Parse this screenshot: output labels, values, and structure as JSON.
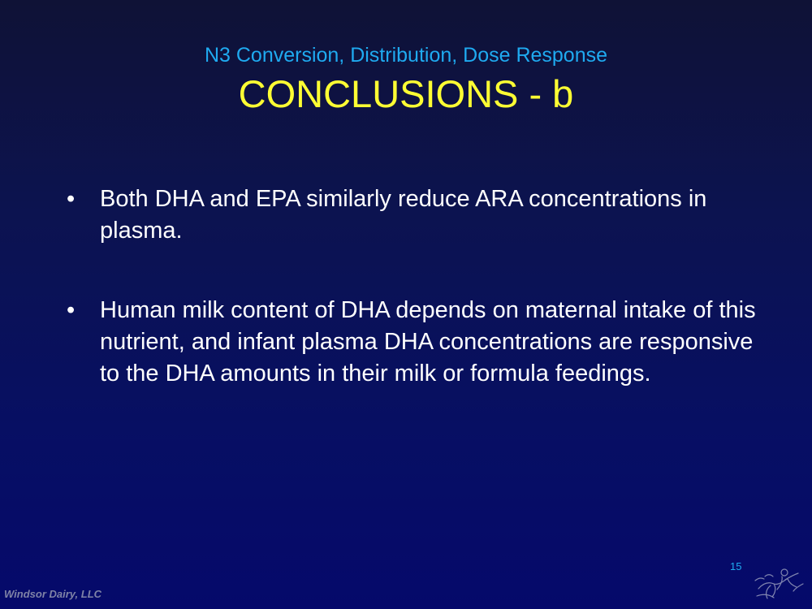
{
  "slide": {
    "subtitle": "N3 Conversion, Distribution, Dose Response",
    "title": "CONCLUSIONS - b",
    "bullet_symbol": "•",
    "bullets": [
      "Both DHA and EPA similarly reduce ARA concentrations in plasma.",
      "Human milk content of DHA depends on maternal intake of this nutrient, and infant plasma DHA concentrations are responsive to the DHA amounts in their milk or formula feedings."
    ],
    "page_number": "15",
    "footer": "Windsor Dairy, LLC",
    "logo_icon": "hand-drawn-figure-icon"
  },
  "colors": {
    "background_top": "#0f1236",
    "background_bottom": "#05096b",
    "subtitle": "#1faaf0",
    "title": "#ffff33",
    "body_text": "#ffffff",
    "footer": "#7f83a6"
  }
}
